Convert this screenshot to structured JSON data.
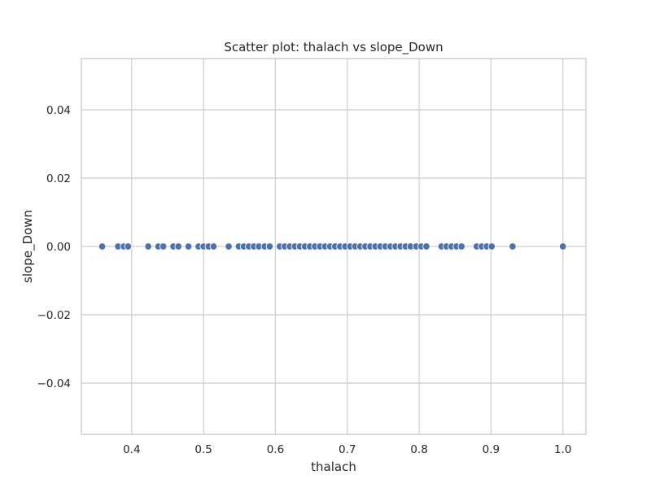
{
  "chart_data": {
    "type": "scatter",
    "title": "Scatter plot: thalach vs slope_Down",
    "xlabel": "thalach",
    "ylabel": "slope_Down",
    "xlim": [
      0.33,
      1.032
    ],
    "ylim": [
      -0.055,
      0.055
    ],
    "xticks": [
      0.4,
      0.5,
      0.6,
      0.7,
      0.8,
      0.9,
      1.0
    ],
    "xtick_labels": [
      "0.4",
      "0.5",
      "0.6",
      "0.7",
      "0.8",
      "0.9",
      "1.0"
    ],
    "yticks": [
      0.04,
      0.02,
      0.0,
      -0.02,
      -0.04
    ],
    "ytick_labels": [
      "0.04",
      "0.02",
      "0.00",
      "−0.02",
      "−0.04"
    ],
    "grid": true,
    "point_color": "#4c72b0",
    "series": [
      {
        "x": [
          0.359,
          0.381,
          0.389,
          0.395,
          0.423,
          0.437,
          0.444,
          0.458,
          0.465,
          0.479,
          0.493,
          0.5,
          0.507,
          0.514,
          0.535,
          0.549,
          0.556,
          0.563,
          0.57,
          0.577,
          0.585,
          0.592,
          0.606,
          0.613,
          0.62,
          0.627,
          0.634,
          0.641,
          0.648,
          0.655,
          0.662,
          0.669,
          0.676,
          0.683,
          0.69,
          0.697,
          0.704,
          0.711,
          0.718,
          0.725,
          0.732,
          0.739,
          0.746,
          0.753,
          0.76,
          0.767,
          0.774,
          0.781,
          0.788,
          0.796,
          0.803,
          0.81,
          0.831,
          0.838,
          0.845,
          0.852,
          0.859,
          0.88,
          0.887,
          0.894,
          0.901,
          0.93,
          1.0
        ],
        "y": [
          0,
          0,
          0,
          0,
          0,
          0,
          0,
          0,
          0,
          0,
          0,
          0,
          0,
          0,
          0,
          0,
          0,
          0,
          0,
          0,
          0,
          0,
          0,
          0,
          0,
          0,
          0,
          0,
          0,
          0,
          0,
          0,
          0,
          0,
          0,
          0,
          0,
          0,
          0,
          0,
          0,
          0,
          0,
          0,
          0,
          0,
          0,
          0,
          0,
          0,
          0,
          0,
          0,
          0,
          0,
          0,
          0,
          0,
          0,
          0,
          0,
          0,
          0
        ]
      }
    ]
  }
}
